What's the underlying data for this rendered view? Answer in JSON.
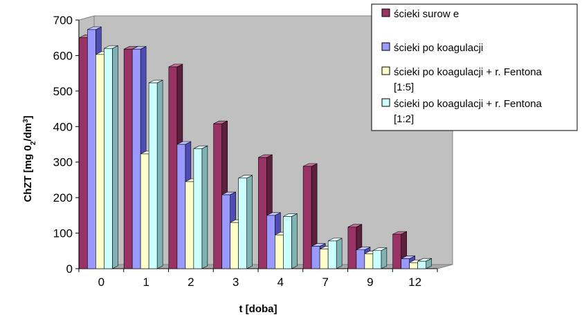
{
  "chart_data": {
    "type": "bar",
    "title": "",
    "xlabel": "t [doba]",
    "ylabel": {
      "main": "ChZT [mg 0",
      "sub": "2",
      "mid": "/dm",
      "sup": "3",
      "end": "]"
    },
    "categories": [
      "0",
      "1",
      "2",
      "3",
      "4",
      "7",
      "9",
      "12"
    ],
    "ylim": [
      0,
      700
    ],
    "yticks": [
      "0",
      "100",
      "200",
      "300",
      "400",
      "500",
      "600",
      "700"
    ],
    "grid": false,
    "legend_position": "top-right",
    "series": [
      {
        "name": [
          "ścieki surow e"
        ],
        "color": "#993366",
        "side": "#5c1f3d",
        "top": "#c27098",
        "values": [
          650,
          618,
          568,
          408,
          313,
          288,
          117,
          97
        ]
      },
      {
        "name": [
          "ścieki po koagulacji"
        ],
        "color": "#9999ff",
        "side": "#4d4db3",
        "top": "#c2c2ff",
        "values": [
          673,
          618,
          350,
          208,
          150,
          63,
          53,
          28
        ]
      },
      {
        "name": [
          "ścieki po koagulacji + r. Fentona",
          "[1:5]"
        ],
        "color": "#ffffcc",
        "side": "#c4c49a",
        "top": "#ffffe6",
        "values": [
          603,
          323,
          245,
          130,
          95,
          55,
          42,
          17
        ]
      },
      {
        "name": [
          "ścieki po koagulacji + r. Fentona",
          "[1:2]"
        ],
        "color": "#ccffff",
        "side": "#7fb3b3",
        "top": "#e6ffff",
        "values": [
          620,
          523,
          338,
          255,
          147,
          78,
          51,
          21
        ]
      }
    ]
  }
}
